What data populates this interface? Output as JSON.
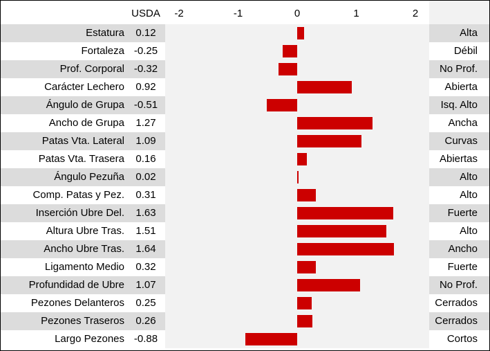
{
  "chart_data": {
    "type": "bar",
    "orientation": "horizontal",
    "value_header": "USDA",
    "xlim": [
      -2.2,
      2.2
    ],
    "xticks": [
      -2,
      -1,
      0,
      1,
      2
    ],
    "bar_color": "#cc0000",
    "row_shade_color": "#dcdcdc",
    "rows": [
      {
        "trait": "Estatura",
        "value_text": "0.12",
        "value": 0.12,
        "description": "Alta"
      },
      {
        "trait": "Fortaleza",
        "value_text": "-0.25",
        "value": -0.25,
        "description": "Débil"
      },
      {
        "trait": "Prof. Corporal",
        "value_text": "-0.32",
        "value": -0.32,
        "description": "No Prof."
      },
      {
        "trait": "Carácter Lechero",
        "value_text": "0.92",
        "value": 0.92,
        "description": "Abierta"
      },
      {
        "trait": "Ángulo de Grupa",
        "value_text": "-0.51",
        "value": -0.51,
        "description": "Isq. Alto"
      },
      {
        "trait": "Ancho de Grupa",
        "value_text": "1.27",
        "value": 1.27,
        "description": "Ancha"
      },
      {
        "trait": "Patas Vta. Lateral",
        "value_text": "1.09",
        "value": 1.09,
        "description": "Curvas"
      },
      {
        "trait": "Patas Vta. Trasera",
        "value_text": "0.16",
        "value": 0.16,
        "description": "Abiertas"
      },
      {
        "trait": "Ángulo Pezuña",
        "value_text": "0.02",
        "value": 0.02,
        "description": "Alto"
      },
      {
        "trait": "Comp. Patas y Pez.",
        "value_text": "0.31",
        "value": 0.31,
        "description": "Alto"
      },
      {
        "trait": "Inserción Ubre Del.",
        "value_text": "1.63",
        "value": 1.63,
        "description": "Fuerte"
      },
      {
        "trait": "Altura Ubre Tras.",
        "value_text": "1.51",
        "value": 1.51,
        "description": "Alto"
      },
      {
        "trait": "Ancho Ubre Tras.",
        "value_text": "1.64",
        "value": 1.64,
        "description": "Ancho"
      },
      {
        "trait": "Ligamento Medio",
        "value_text": "0.32",
        "value": 0.32,
        "description": "Fuerte"
      },
      {
        "trait": "Profundidad de Ubre",
        "value_text": "1.07",
        "value": 1.07,
        "description": "No Prof."
      },
      {
        "trait": "Pezones Delanteros",
        "value_text": "0.25",
        "value": 0.25,
        "description": "Cerrados"
      },
      {
        "trait": "Pezones Traseros",
        "value_text": "0.26",
        "value": 0.26,
        "description": "Cerrados"
      },
      {
        "trait": "Largo Pezones",
        "value_text": "-0.88",
        "value": -0.88,
        "description": "Cortos"
      }
    ]
  }
}
